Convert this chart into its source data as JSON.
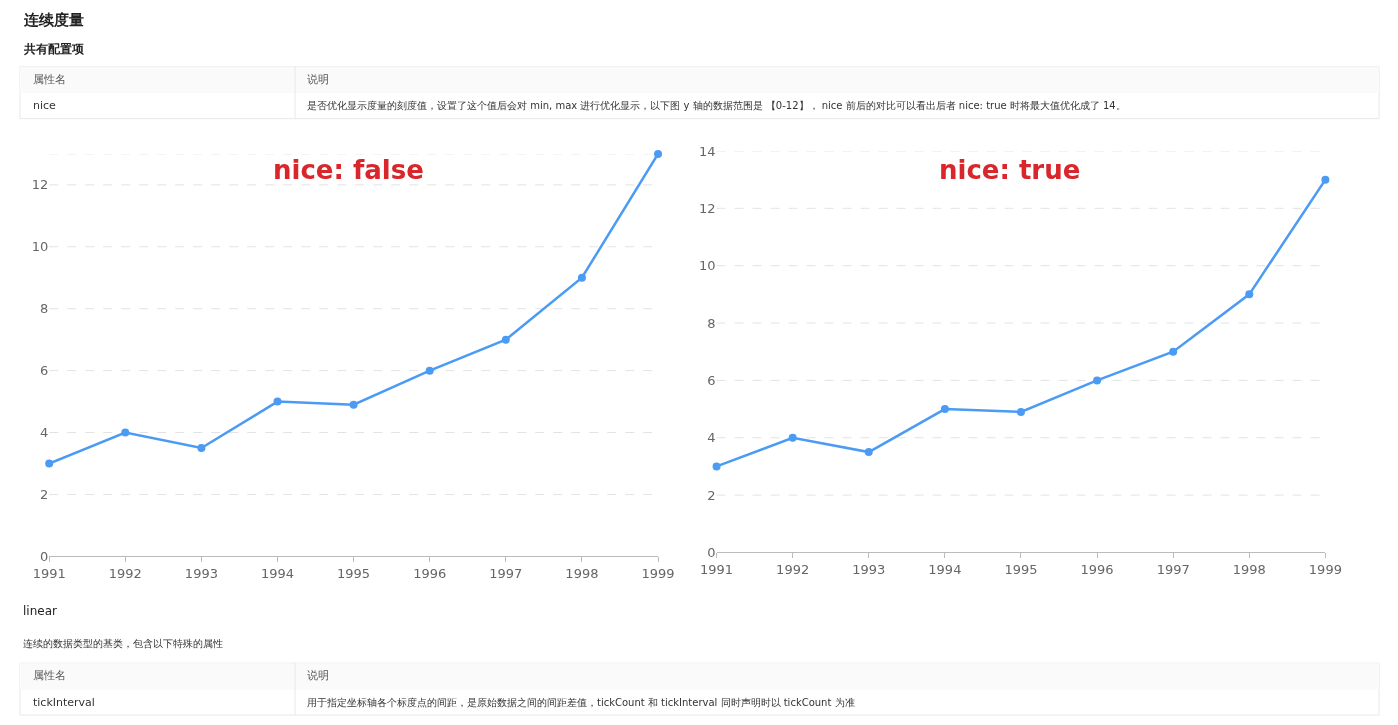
{
  "chart_data": [
    {
      "type": "line",
      "x": [
        1991,
        1992,
        1993,
        1994,
        1995,
        1996,
        1997,
        1998,
        1999
      ],
      "xlim": [
        1991,
        1999
      ],
      "xticks": [
        1991,
        1992,
        1993,
        1994,
        1995,
        1996,
        1997,
        1998,
        1999
      ],
      "ylim": [
        0,
        13
      ],
      "yticks": [
        0,
        2,
        4,
        6,
        8,
        10,
        12,
        {
          "value": 13,
          "label": null
        }
      ],
      "grid": "y",
      "marker": "circle",
      "line_style": "solid",
      "series": [
        {
          "color": "#4b9bf5",
          "values": [
            3,
            4,
            3.5,
            5,
            4.9,
            6,
            7,
            9,
            13
          ]
        }
      ],
      "annotations": [
        "连续度量",
        "共有配置项",
        "属性名",
        "说明",
        "nice",
        "是否优化显示度量的刻度值，设置了这个值后会对 min, max 进行优化显示，以下图 y 轴的数据范围是 【0-12】， nice 前后的对比可以看出后者 nice: true 时将最大值优化成了 14。",
        "nice: false"
      ]
    },
    {
      "type": "line",
      "x": [
        1991,
        1992,
        1993,
        1994,
        1995,
        1996,
        1997,
        1998,
        1999
      ],
      "xlim": [
        1991,
        1999
      ],
      "xticks": [
        1991,
        1992,
        1993,
        1994,
        1995,
        1996,
        1997,
        1998,
        1999
      ],
      "ylim": [
        0,
        14
      ],
      "yticks": [
        0,
        2,
        4,
        6,
        8,
        10,
        12,
        14
      ],
      "grid": "y",
      "marker": "circle",
      "line_style": "solid",
      "series": [
        {
          "color": "#4b9bf5",
          "values": [
            3,
            4,
            3.5,
            5,
            4.9,
            6,
            7,
            9,
            13
          ]
        }
      ],
      "annotations": [
        "nice: true",
        "linear",
        "连续的数据类型的基类，包含以下特殊的属性",
        "属性名",
        "说明",
        "tickInterval",
        "用于指定坐标轴各个标度点的间距，是原始数据之间的间距差值，tickCount 和 tickInterval 同时声明时以 tickCount 为准"
      ]
    }
  ]
}
